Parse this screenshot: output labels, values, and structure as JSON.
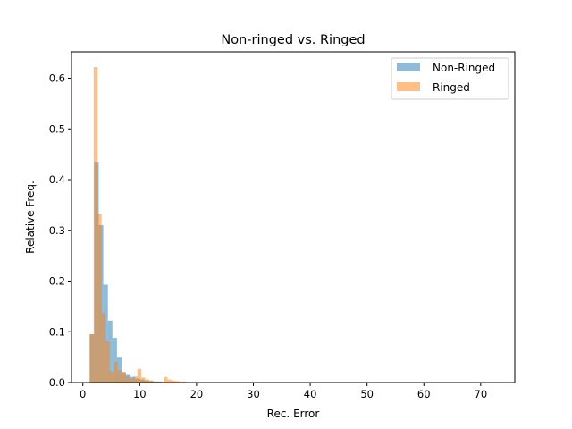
{
  "chart_data": {
    "type": "bar",
    "title": "Non-ringed vs. Ringed",
    "xlabel": "Rec. Error",
    "ylabel": "Relative Freq.",
    "xlim": [
      -2,
      76
    ],
    "ylim": [
      0,
      0.652
    ],
    "xticks": [
      0,
      10,
      20,
      30,
      40,
      50,
      60,
      70
    ],
    "yticks": [
      0.0,
      0.1,
      0.2,
      0.3,
      0.4,
      0.5,
      0.6
    ],
    "legend_position": "top-right",
    "grid": false,
    "series": [
      {
        "name": "Non-Ringed",
        "color": "#1f77b4",
        "opacity": 0.5,
        "bins": [
          {
            "x0": 1.2,
            "x1": 2.0,
            "value": 0.095
          },
          {
            "x0": 2.0,
            "x1": 2.8,
            "value": 0.435
          },
          {
            "x0": 2.8,
            "x1": 3.6,
            "value": 0.31
          },
          {
            "x0": 3.6,
            "x1": 4.4,
            "value": 0.193
          },
          {
            "x0": 4.4,
            "x1": 5.2,
            "value": 0.122
          },
          {
            "x0": 5.2,
            "x1": 6.0,
            "value": 0.088
          },
          {
            "x0": 6.0,
            "x1": 6.8,
            "value": 0.049
          },
          {
            "x0": 6.8,
            "x1": 7.6,
            "value": 0.02
          },
          {
            "x0": 7.6,
            "x1": 8.4,
            "value": 0.015
          },
          {
            "x0": 8.4,
            "x1": 9.2,
            "value": 0.011
          },
          {
            "x0": 9.2,
            "x1": 10.0,
            "value": 0.008
          },
          {
            "x0": 10.0,
            "x1": 10.8,
            "value": 0.006
          },
          {
            "x0": 10.8,
            "x1": 11.6,
            "value": 0.004
          },
          {
            "x0": 11.6,
            "x1": 12.4,
            "value": 0.003
          },
          {
            "x0": 12.4,
            "x1": 13.2,
            "value": 0.002
          },
          {
            "x0": 13.2,
            "x1": 14.0,
            "value": 0.002
          },
          {
            "x0": 14.0,
            "x1": 15.0,
            "value": 0.001
          },
          {
            "x0": 15.0,
            "x1": 16.0,
            "value": 0.001
          }
        ]
      },
      {
        "name": "Ringed",
        "color": "#ff7f0e",
        "opacity": 0.5,
        "bins": [
          {
            "x0": 1.2,
            "x1": 1.9,
            "value": 0.095
          },
          {
            "x0": 1.9,
            "x1": 2.6,
            "value": 0.622
          },
          {
            "x0": 2.6,
            "x1": 3.3,
            "value": 0.333
          },
          {
            "x0": 3.3,
            "x1": 4.0,
            "value": 0.137
          },
          {
            "x0": 4.0,
            "x1": 4.7,
            "value": 0.082
          },
          {
            "x0": 4.7,
            "x1": 5.4,
            "value": 0.022
          },
          {
            "x0": 5.4,
            "x1": 6.1,
            "value": 0.041
          },
          {
            "x0": 6.1,
            "x1": 6.8,
            "value": 0.024
          },
          {
            "x0": 6.8,
            "x1": 7.5,
            "value": 0.021
          },
          {
            "x0": 7.5,
            "x1": 8.2,
            "value": 0.012
          },
          {
            "x0": 8.2,
            "x1": 8.9,
            "value": 0.008
          },
          {
            "x0": 8.9,
            "x1": 9.6,
            "value": 0.012
          },
          {
            "x0": 9.6,
            "x1": 10.3,
            "value": 0.027
          },
          {
            "x0": 10.3,
            "x1": 11.0,
            "value": 0.01
          },
          {
            "x0": 11.0,
            "x1": 11.7,
            "value": 0.006
          },
          {
            "x0": 11.7,
            "x1": 12.4,
            "value": 0.004
          },
          {
            "x0": 12.4,
            "x1": 13.1,
            "value": 0.002
          },
          {
            "x0": 13.1,
            "x1": 13.8,
            "value": 0.002
          },
          {
            "x0": 14.2,
            "x1": 14.9,
            "value": 0.011
          },
          {
            "x0": 14.9,
            "x1": 15.6,
            "value": 0.006
          },
          {
            "x0": 15.6,
            "x1": 16.3,
            "value": 0.004
          },
          {
            "x0": 16.3,
            "x1": 17.0,
            "value": 0.003
          },
          {
            "x0": 17.4,
            "x1": 18.1,
            "value": 0.002
          },
          {
            "x0": 19.5,
            "x1": 20.2,
            "value": 0.001
          }
        ]
      }
    ]
  }
}
